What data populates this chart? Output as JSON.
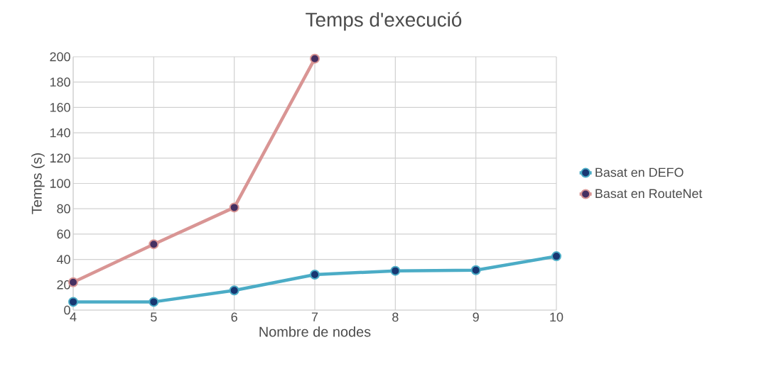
{
  "chart_data": {
    "type": "line",
    "title": "Temps d'execució",
    "xlabel": "Nombre de nodes",
    "ylabel": "Temps (s)",
    "x": [
      4,
      5,
      6,
      7,
      8,
      9,
      10
    ],
    "series": [
      {
        "name": "Basat en DEFO",
        "color": "#4bacc6",
        "values": [
          6.5,
          6.5,
          15.5,
          28,
          31,
          31.5,
          42.5
        ]
      },
      {
        "name": "Basat en RouteNet",
        "color": "#d99594",
        "values": [
          22,
          52,
          81,
          198.5,
          null,
          null,
          null
        ]
      }
    ],
    "xlim": [
      4,
      10
    ],
    "xticks": [
      4,
      5,
      6,
      7,
      8,
      9,
      10
    ],
    "ylim": [
      0,
      200
    ],
    "yticks": [
      0,
      20,
      40,
      60,
      80,
      100,
      120,
      140,
      160,
      180,
      200
    ],
    "grid": true,
    "legend": "right",
    "marker": "circle",
    "line_style": "solid"
  }
}
